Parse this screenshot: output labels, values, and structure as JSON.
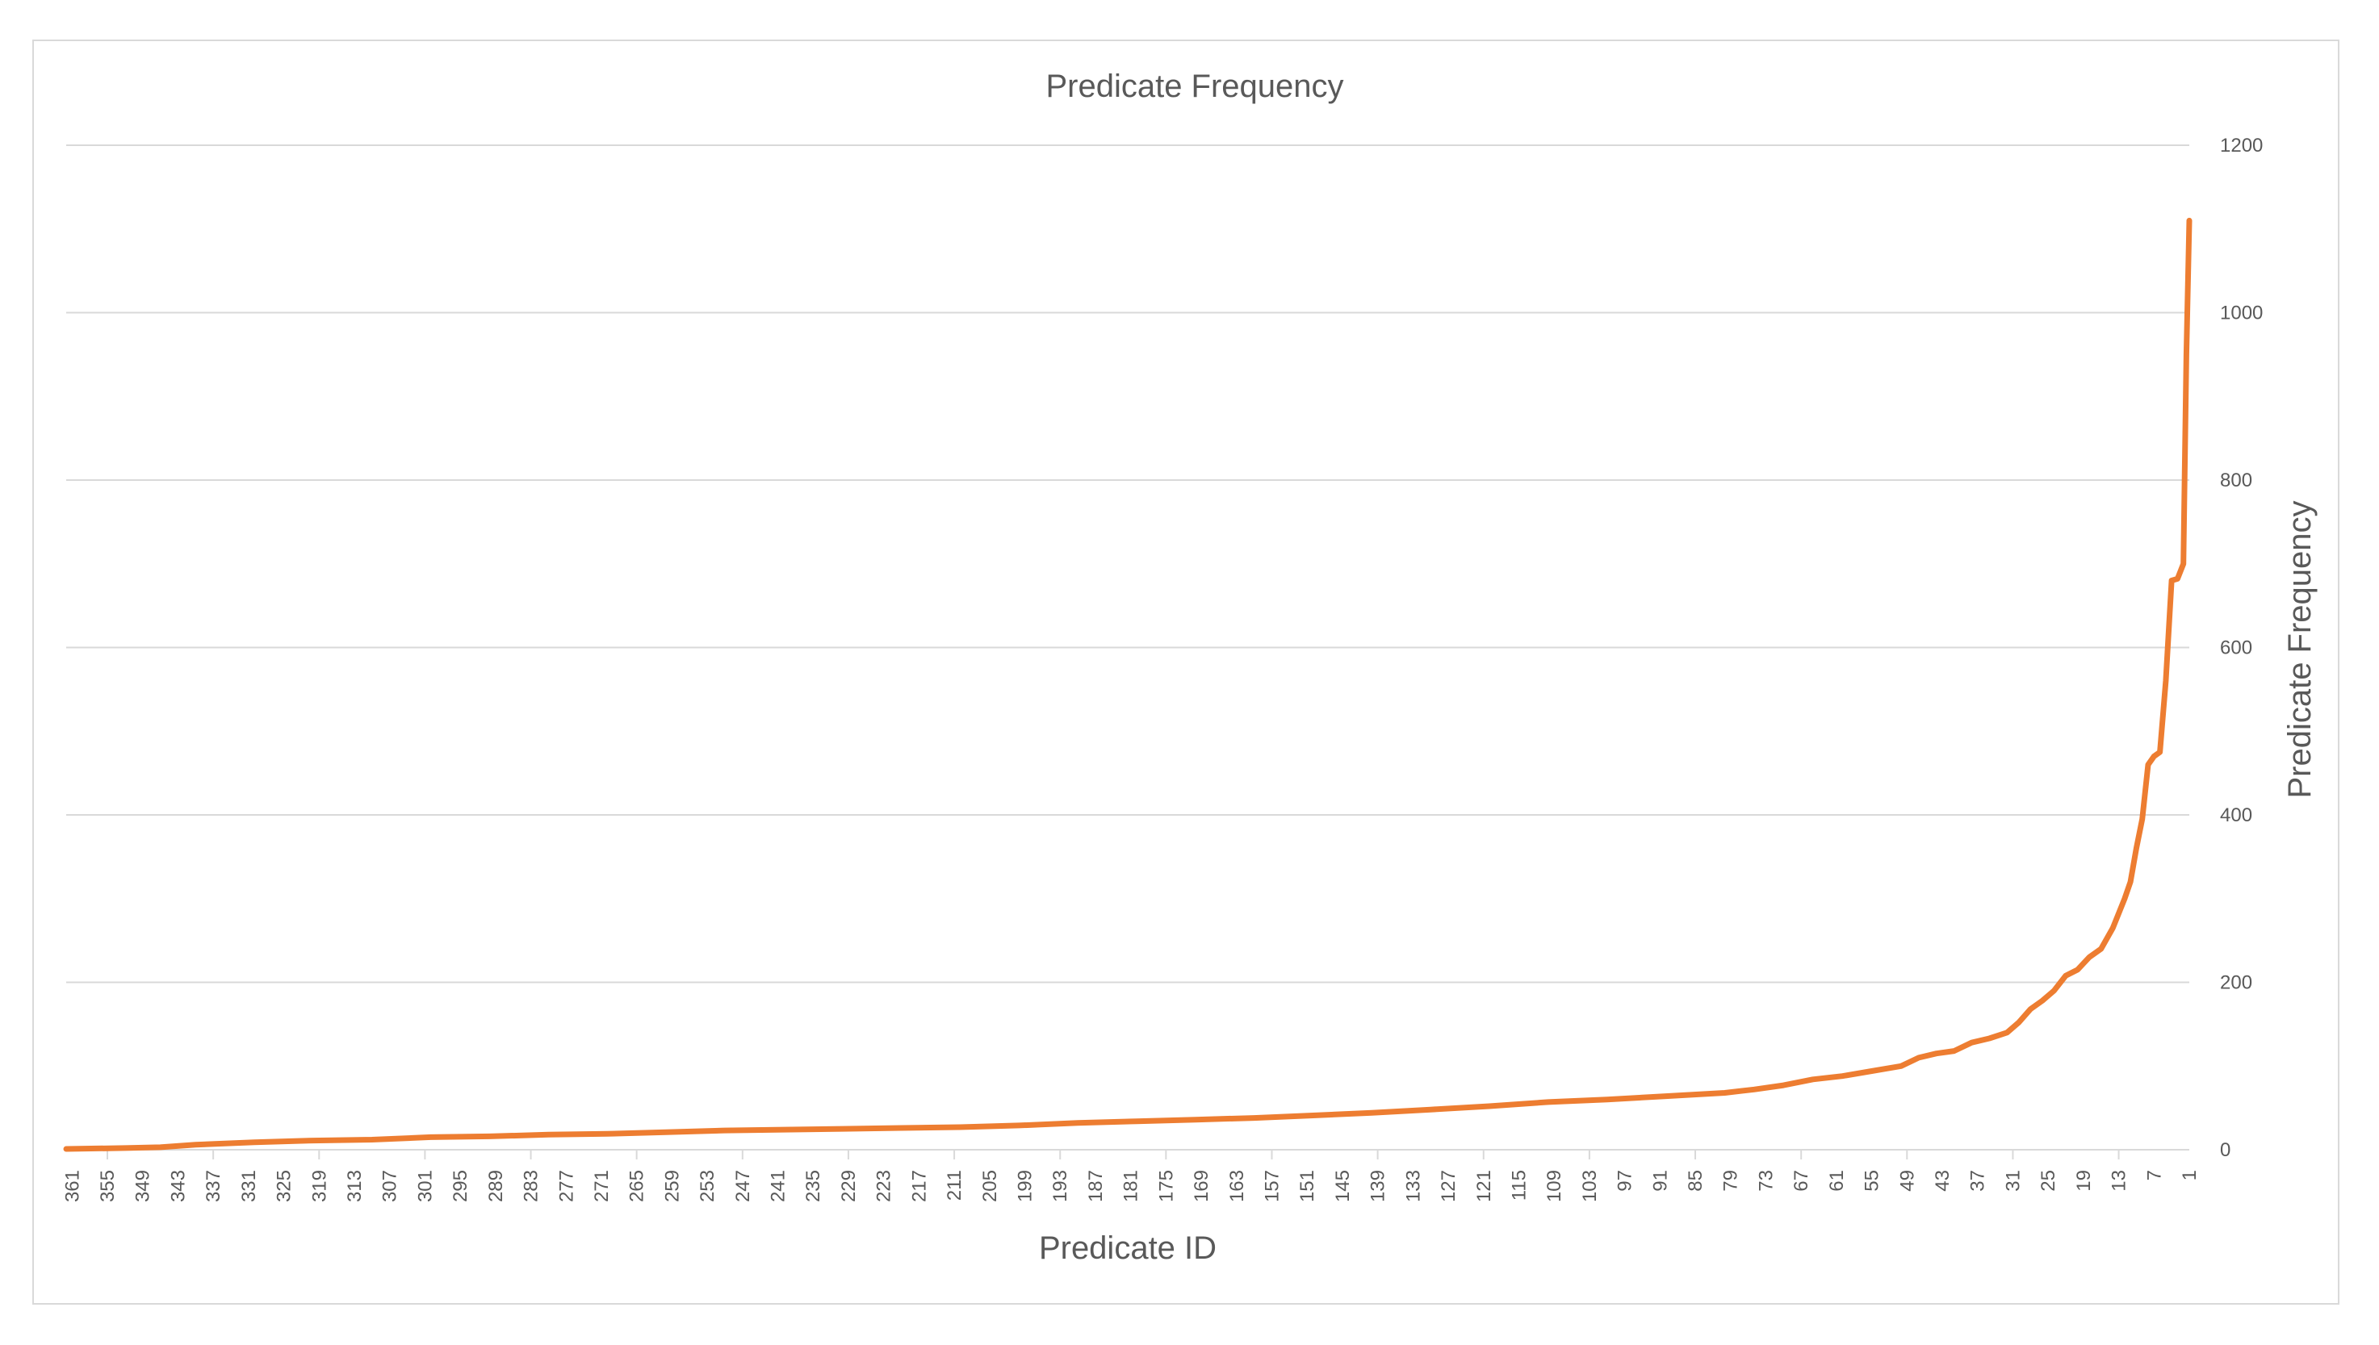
{
  "chart_data": {
    "type": "line",
    "title": "Predicate Frequency",
    "xlabel": "Predicate ID",
    "ylabel": "Predicate Frequency",
    "x_order": "descending",
    "x_min": 1,
    "x_max": 362,
    "x_tick_labels": [
      361,
      355,
      349,
      343,
      337,
      331,
      325,
      319,
      313,
      307,
      301,
      295,
      289,
      283,
      277,
      271,
      265,
      259,
      253,
      247,
      241,
      235,
      229,
      223,
      217,
      211,
      205,
      199,
      193,
      187,
      181,
      175,
      169,
      163,
      157,
      151,
      145,
      139,
      133,
      127,
      121,
      115,
      109,
      103,
      97,
      91,
      85,
      79,
      73,
      67,
      61,
      55,
      49,
      43,
      37,
      31,
      25,
      19,
      13,
      7,
      1
    ],
    "ylim": [
      0,
      1200
    ],
    "y_ticks": [
      0,
      200,
      400,
      600,
      800,
      1000,
      1200
    ],
    "y_axis_position": "right",
    "grid": true,
    "series_color": "#ED7D31",
    "series": [
      {
        "points": [
          [
            362,
            1
          ],
          [
            352,
            2
          ],
          [
            346,
            3
          ],
          [
            340,
            6
          ],
          [
            330,
            9
          ],
          [
            320,
            11
          ],
          [
            310,
            12
          ],
          [
            300,
            15
          ],
          [
            290,
            16
          ],
          [
            280,
            18
          ],
          [
            270,
            19
          ],
          [
            260,
            21
          ],
          [
            250,
            23
          ],
          [
            240,
            24
          ],
          [
            230,
            25
          ],
          [
            220,
            26
          ],
          [
            210,
            27
          ],
          [
            200,
            29
          ],
          [
            190,
            32
          ],
          [
            180,
            34
          ],
          [
            170,
            36
          ],
          [
            160,
            38
          ],
          [
            150,
            41
          ],
          [
            140,
            44
          ],
          [
            130,
            48
          ],
          [
            120,
            52
          ],
          [
            110,
            57
          ],
          [
            100,
            60
          ],
          [
            90,
            64
          ],
          [
            80,
            68
          ],
          [
            75,
            72
          ],
          [
            70,
            77
          ],
          [
            65,
            84
          ],
          [
            60,
            88
          ],
          [
            55,
            94
          ],
          [
            50,
            100
          ],
          [
            47,
            110
          ],
          [
            44,
            115
          ],
          [
            41,
            118
          ],
          [
            38,
            128
          ],
          [
            35,
            133
          ],
          [
            32,
            140
          ],
          [
            30,
            152
          ],
          [
            28,
            168
          ],
          [
            26,
            178
          ],
          [
            24,
            190
          ],
          [
            22,
            208
          ],
          [
            20,
            215
          ],
          [
            18,
            230
          ],
          [
            16,
            240
          ],
          [
            14,
            265
          ],
          [
            12,
            300
          ],
          [
            11,
            320
          ],
          [
            10,
            360
          ],
          [
            9,
            395
          ],
          [
            8,
            460
          ],
          [
            7,
            470
          ],
          [
            6,
            475
          ],
          [
            5,
            560
          ],
          [
            4,
            680
          ],
          [
            3,
            682
          ],
          [
            2,
            700
          ],
          [
            1.5,
            950
          ],
          [
            1,
            1110
          ]
        ]
      }
    ]
  }
}
